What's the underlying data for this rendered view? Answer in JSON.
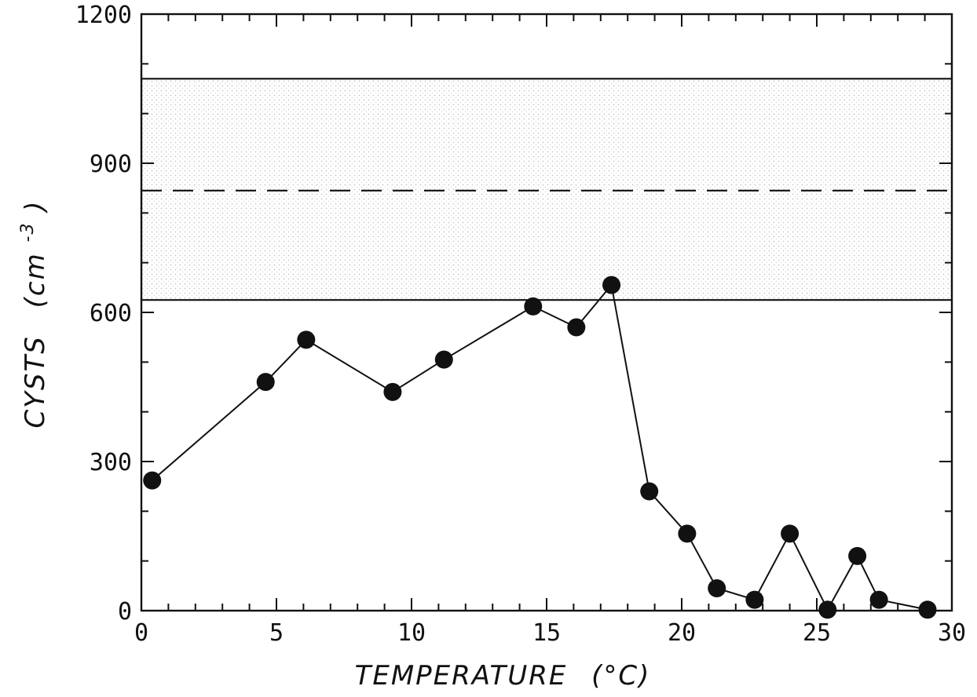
{
  "chart_data": {
    "type": "line",
    "xlabel": "TEMPERATURE (°C)",
    "xlabel_main": "TEMPERATURE",
    "xlabel_unit": "(°C)",
    "ylabel_main": "CYSTS",
    "ylabel_unit_base": "(cm",
    "ylabel_unit_exp": "-3",
    "ylabel_unit_close": ")",
    "xlim": [
      0,
      30
    ],
    "ylim": [
      0,
      1200
    ],
    "xticks": [
      0,
      5,
      10,
      15,
      20,
      25,
      30
    ],
    "yticks": [
      0,
      300,
      600,
      900,
      1200
    ],
    "xticks_labels": [
      "0",
      "5",
      "10",
      "15",
      "20",
      "25",
      "30"
    ],
    "yticks_labels": [
      "0",
      "300",
      "600",
      "900",
      "1200"
    ],
    "grid": false,
    "series": [
      {
        "x": [
          0.4,
          4.6,
          6.1,
          9.3,
          11.2,
          14.5,
          16.1,
          17.4,
          18.8,
          20.2,
          21.3,
          22.7,
          24.0,
          25.4,
          26.5,
          27.3,
          29.1
        ],
        "y": [
          262,
          460,
          545,
          440,
          505,
          612,
          570,
          655,
          240,
          155,
          45,
          22,
          155,
          2,
          110,
          22,
          2
        ]
      }
    ],
    "reference_lines": [
      {
        "style": "solid",
        "y": 1070
      },
      {
        "style": "dashed",
        "y": 845
      },
      {
        "style": "solid",
        "y": 625
      }
    ],
    "shaded_band": {
      "y_from": 625,
      "y_to": 1070
    }
  },
  "colors": {
    "ink": "#111111",
    "band": "#d9d9d9"
  }
}
